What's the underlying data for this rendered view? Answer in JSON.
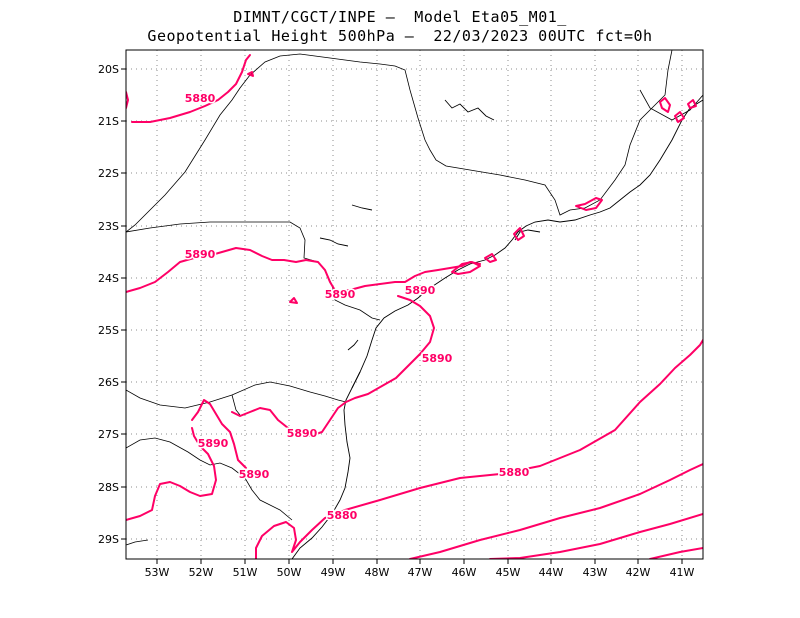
{
  "title": {
    "line1": "DIMNT/CGCT/INPE –  Model Eta05_M01_",
    "line2": "Geopotential Height 500hPa –  22/03/2023 00UTC fct=0h"
  },
  "axes": {
    "lon_labels": [
      "53W",
      "52W",
      "51W",
      "50W",
      "49W",
      "48W",
      "47W",
      "46W",
      "45W",
      "44W",
      "43W",
      "42W",
      "41W"
    ],
    "lat_labels": [
      "20S",
      "21S",
      "22S",
      "23S",
      "24S",
      "25S",
      "26S",
      "27S",
      "28S",
      "29S"
    ]
  },
  "contour_labels": [
    "5880",
    "5890",
    "5890",
    "5890",
    "5890",
    "5890",
    "5890",
    "5880",
    "5880"
  ],
  "colors": {
    "contour": "#ff0066",
    "grid": "#8c8c8c",
    "map": "#000000"
  }
}
